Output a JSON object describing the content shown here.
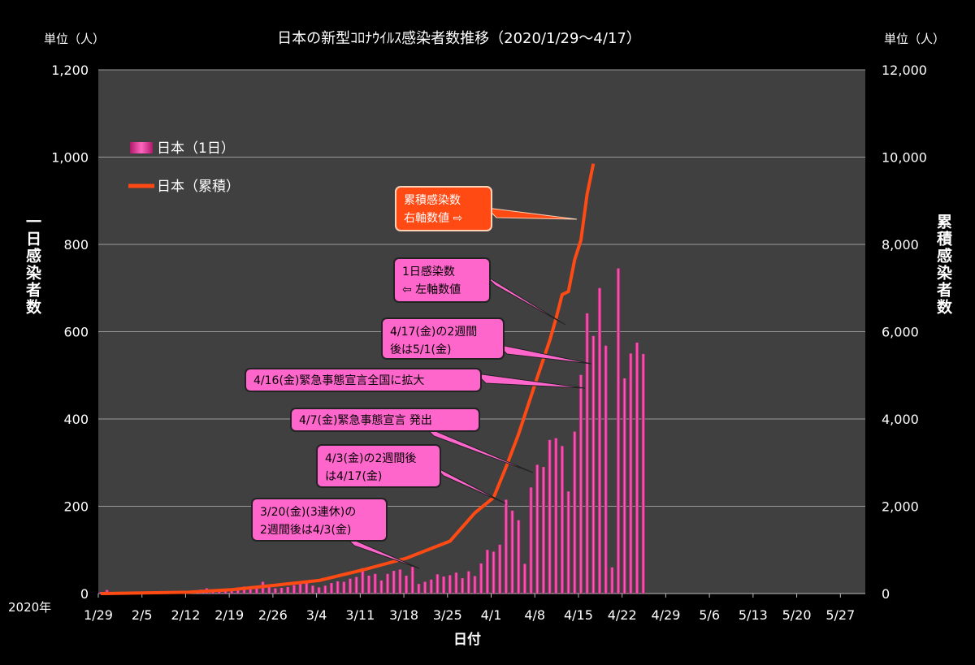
{
  "chart_data": {
    "type": "bar+line",
    "title": "日本の新型ｺﾛﾅｳｲﾙｽ感染者数推移（2020/1/29～4/17）",
    "year_label": "2020年",
    "xlabel": "日付",
    "ylabel_left": "一日感染者数",
    "ylabel_right": "累積感染者数",
    "unit_left": "単位（人）",
    "unit_right": "単位（人）",
    "ylim_left": [
      0,
      1200
    ],
    "ylim_right": [
      0,
      12000
    ],
    "yticks_left": [
      "0",
      "200",
      "400",
      "600",
      "800",
      "1,000",
      "1,200"
    ],
    "yticks_right": [
      "0",
      "2,000",
      "4,000",
      "6,000",
      "8,000",
      "10,000",
      "12,000"
    ],
    "xticks": [
      "1/29",
      "2/5",
      "2/12",
      "2/19",
      "2/26",
      "3/4",
      "3/11",
      "3/18",
      "3/25",
      "4/1",
      "4/8",
      "4/15",
      "4/22",
      "4/29",
      "5/6",
      "5/13",
      "5/20",
      "5/27"
    ],
    "x_start": "1/29",
    "x_end": "5/31",
    "grid": true,
    "legend_position": "top-left",
    "series": [
      {
        "name": "日本（1日）",
        "kind": "bar",
        "axis": "left",
        "color": "#ff3fa4",
        "start": "1/29",
        "values": [
          3,
          8,
          2,
          3,
          2,
          2,
          2,
          1,
          3,
          1,
          2,
          1,
          3,
          2,
          5,
          4,
          9,
          12,
          6,
          7,
          10,
          8,
          11,
          16,
          12,
          17,
          27,
          21,
          12,
          13,
          15,
          19,
          22,
          24,
          18,
          14,
          18,
          24,
          28,
          27,
          34,
          38,
          58,
          41,
          45,
          30,
          45,
          52,
          55,
          41,
          61,
          22,
          27,
          32,
          44,
          39,
          42,
          48,
          35,
          51,
          40,
          69,
          100,
          96,
          112,
          215,
          190,
          168,
          68,
          243,
          295,
          290,
          352,
          356,
          338,
          234,
          371,
          501,
          642,
          590,
          700,
          568,
          60,
          745,
          493,
          550,
          575,
          549
        ],
        "labels_shown": false
      },
      {
        "name": "日本（累積）",
        "kind": "line",
        "axis": "right",
        "color": "#ff4a14",
        "points": [
          [
            "1/29",
            0
          ],
          [
            "2/12",
            30
          ],
          [
            "2/19",
            90
          ],
          [
            "2/26",
            190
          ],
          [
            "3/4",
            300
          ],
          [
            "3/11",
            540
          ],
          [
            "3/18",
            810
          ],
          [
            "3/25",
            1200
          ],
          [
            "3/29",
            1850
          ],
          [
            "4/1",
            2200
          ],
          [
            "4/3",
            2900
          ],
          [
            "4/5",
            3650
          ],
          [
            "4/8",
            4950
          ],
          [
            "4/10",
            5800
          ],
          [
            "4/11",
            6300
          ],
          [
            "4/12",
            6850
          ],
          [
            "4/13",
            6920
          ],
          [
            "4/14",
            7650
          ],
          [
            "4/15",
            8100
          ],
          [
            "4/16",
            9150
          ],
          [
            "4/17",
            9850
          ]
        ]
      }
    ],
    "annotations": [
      {
        "style": "orange",
        "lines": [
          "累積感染数",
          "右軸数値 ⇨"
        ]
      },
      {
        "style": "pink",
        "lines": [
          "1日感染数",
          "⇦ 左軸数値"
        ]
      },
      {
        "style": "pink",
        "lines": [
          "4/17(金)の2週間",
          "後は5/1(金)"
        ]
      },
      {
        "style": "pink",
        "lines": [
          "4/16(金)緊急事態宣言全国に拡大"
        ]
      },
      {
        "style": "pink",
        "lines": [
          "4/7(金)緊急事態宣言  発出"
        ]
      },
      {
        "style": "pink",
        "lines": [
          "4/3(金)の2週間後",
          "は4/17(金)"
        ]
      },
      {
        "style": "pink",
        "lines": [
          "3/20(金)(3連休)の",
          "2週間後は4/3(金)"
        ]
      }
    ]
  }
}
